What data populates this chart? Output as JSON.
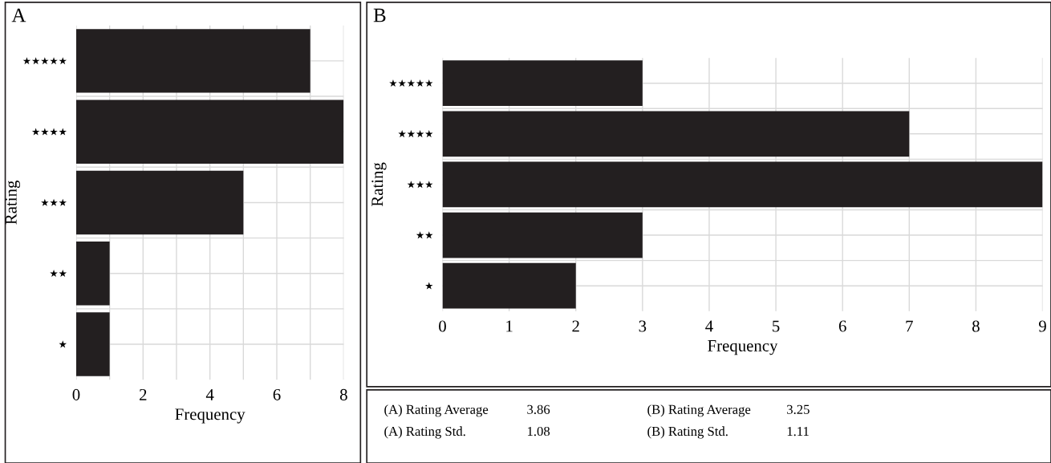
{
  "chart_data": [
    {
      "type": "bar",
      "orientation": "horizontal",
      "title": "A",
      "xlabel": "Frequency",
      "ylabel": "Rating",
      "categories": [
        "★★★★★",
        "★★★★",
        "★★★",
        "★★",
        "★"
      ],
      "values": [
        7,
        8,
        5,
        1,
        1
      ],
      "color": "#231f20",
      "xlim": [
        0,
        8
      ],
      "xticks": [
        0,
        {
          "value": 1,
          "label": null
        },
        2,
        {
          "value": 3,
          "label": null
        },
        4,
        {
          "value": 5,
          "label": null
        },
        6,
        {
          "value": 7,
          "label": null
        },
        8
      ],
      "grid": true,
      "legend": false
    },
    {
      "type": "bar",
      "orientation": "horizontal",
      "title": "B",
      "xlabel": "Frequency",
      "ylabel": "Rating",
      "categories": [
        "★★★★★",
        "★★★★",
        "★★★",
        "★★",
        "★"
      ],
      "values": [
        3,
        7,
        9,
        3,
        2
      ],
      "color": "#231f20",
      "xlim": [
        0,
        9
      ],
      "xticks": [
        0,
        1,
        2,
        3,
        4,
        5,
        6,
        7,
        8,
        9
      ],
      "grid": true,
      "legend": false
    },
    {
      "type": "other",
      "annotations": [
        "(A) Rating Average",
        "3.86",
        "(A) Rating Std.",
        "1.08",
        "(B) Rating Average",
        "3.25",
        "(B) Rating Std.",
        "1.11"
      ]
    }
  ]
}
